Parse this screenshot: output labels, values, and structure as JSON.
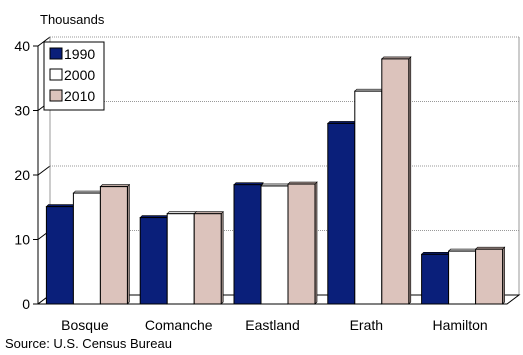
{
  "chart_data": {
    "type": "bar",
    "title": "",
    "ylabel": "Thousands",
    "xlabel": "",
    "categories": [
      "Bosque",
      "Comanche",
      "Eastland",
      "Erath",
      "Hamilton"
    ],
    "series": [
      {
        "name": "1990",
        "values": [
          15.1,
          13.4,
          18.5,
          28.0,
          7.7
        ]
      },
      {
        "name": "2000",
        "values": [
          17.2,
          14.0,
          18.3,
          33.0,
          8.2
        ]
      },
      {
        "name": "2010",
        "values": [
          18.2,
          14.0,
          18.6,
          38.0,
          8.5
        ]
      }
    ],
    "ylim": [
      0,
      40
    ],
    "yticks": [
      0,
      10,
      20,
      30,
      40
    ],
    "grid": true,
    "legend_position": "top-left",
    "colors": {
      "1990": "#0a1f7a",
      "2000": "#ffffff",
      "2010": "#dcc3bc",
      "axis": "#000000",
      "grid": "#999999"
    },
    "source_note": "Source:  U.S. Census Bureau"
  }
}
